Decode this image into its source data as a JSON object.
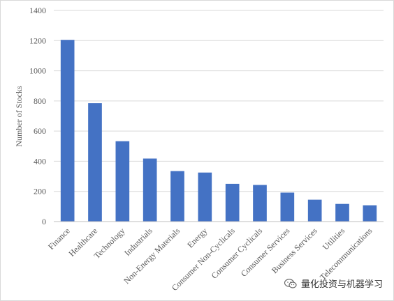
{
  "chart_data": {
    "type": "bar",
    "categories": [
      "Finance",
      "Healthcare",
      "Technology",
      "Industrials",
      "Non-Energy Materials",
      "Energy",
      "Consumer Non-Cyclicals",
      "Consumer Cyclicals",
      "Consumer Services",
      "Business Services",
      "Utilities",
      "Telecommunications"
    ],
    "values": [
      1205,
      785,
      533,
      418,
      335,
      325,
      250,
      243,
      192,
      145,
      117,
      108
    ],
    "title": "",
    "xlabel": "",
    "ylabel": "Number of Stocks",
    "ylim": [
      0,
      1400
    ],
    "yticks": [
      0,
      200,
      400,
      600,
      800,
      1000,
      1200,
      1400
    ],
    "grid": true,
    "bar_color": "#4472C4",
    "grid_color": "#d9d9d9"
  },
  "watermark": {
    "icon": "wechat-icon",
    "text": "量化投资与机器学习"
  }
}
